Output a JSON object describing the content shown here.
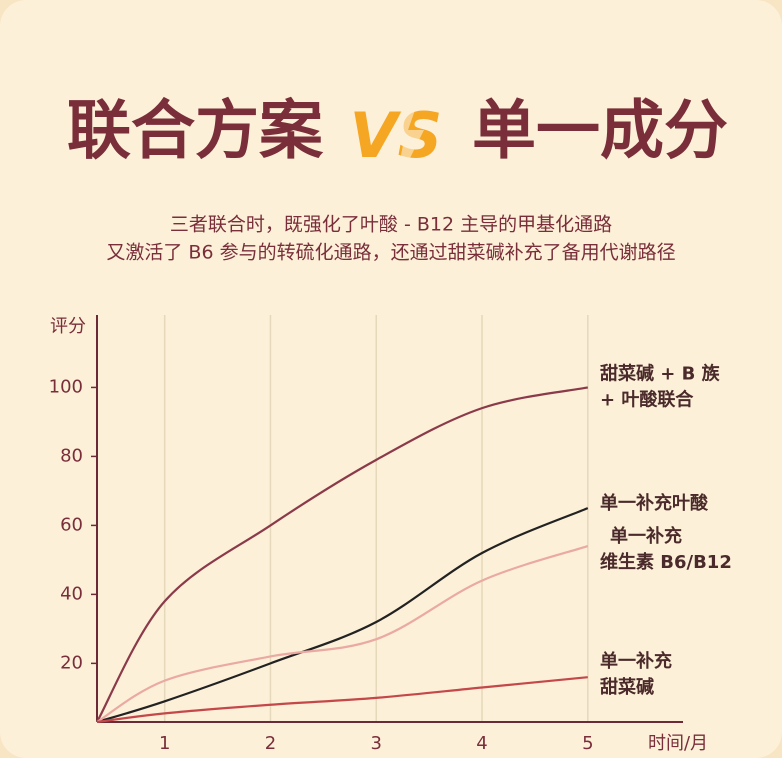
{
  "chart_data": {
    "type": "line",
    "title": {
      "left": "联合方案",
      "vs": "VS",
      "right": "单一成分"
    },
    "subtitle": [
      "三者联合时，既强化了叶酸 - B12 主导的甲基化通路",
      "又激活了 B6 参与的转硫化通路，还通过甜菜碱补充了备用代谢路径"
    ],
    "y_label": "评分",
    "x_label": "时间/月",
    "x": [
      0.36,
      1,
      2,
      3,
      4,
      5
    ],
    "xlim": [
      0.36,
      5.9
    ],
    "ylim": [
      3,
      121
    ],
    "xticks": [
      1,
      2,
      3,
      4,
      5
    ],
    "yticks": [
      20,
      40,
      60,
      80,
      100
    ],
    "grid": true,
    "series": [
      {
        "name": [
          "甜菜碱 + B 族",
          "+ 叶酸联合"
        ],
        "color": "#8b3a4a",
        "values": [
          3,
          38,
          60,
          79,
          94,
          100
        ]
      },
      {
        "name": [
          "单一补充叶酸"
        ],
        "color": "#222222",
        "values": [
          3,
          9,
          20,
          32,
          52,
          65
        ]
      },
      {
        "name": [
          "单一补充",
          "维生素 B6/B12"
        ],
        "color": "#eaa9a2",
        "values": [
          3,
          15,
          22,
          27,
          44,
          54
        ]
      },
      {
        "name": [
          "单一补充",
          "甜菜碱"
        ],
        "color": "#c4474a",
        "values": [
          3,
          5.5,
          8,
          10,
          13,
          16
        ]
      }
    ]
  }
}
